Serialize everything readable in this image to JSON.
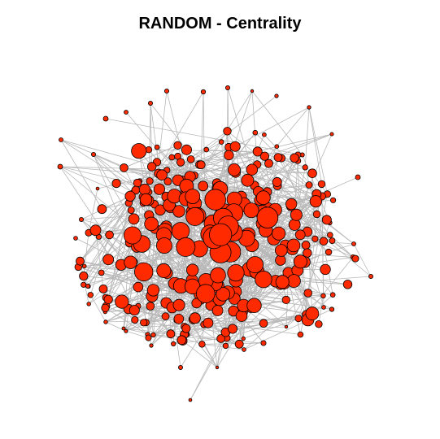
{
  "title": "RANDOM - Centrality",
  "colors": {
    "background": "#ffffff",
    "node_fill": "#ff2a00",
    "node_stroke": "#000000",
    "edge": "#b8b8b8"
  },
  "chart_data": {
    "type": "network",
    "title": "RANDOM - Centrality",
    "node_size_encodes": "centrality",
    "legend": "none",
    "axes": "none"
  }
}
